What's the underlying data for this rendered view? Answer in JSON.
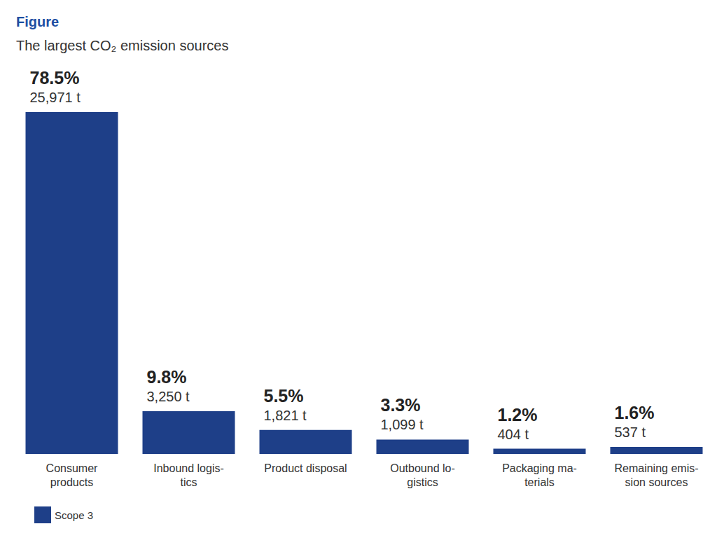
{
  "chart_data": {
    "type": "bar",
    "title": "Figure",
    "subtitle": "The largest CO₂ emission sources",
    "categories": [
      "Consumer\nproducts",
      "Inbound logis-\ntics",
      "Product disposal",
      "Outbound lo-\ngistics",
      "Packaging ma-\nterials",
      "Remaining emis-\nsion sources"
    ],
    "series": [
      {
        "name": "Scope 3",
        "color": "#1e3f88",
        "values": [
          78.5,
          9.8,
          5.5,
          3.3,
          1.2,
          1.6
        ],
        "value_labels": [
          "78.5%",
          "9.8%",
          "5.5%",
          "3.3%",
          "1.2%",
          "1.6%"
        ],
        "tonnes": [
          25971,
          3250,
          1821,
          1099,
          404,
          537
        ],
        "tonne_labels": [
          "25,971 t",
          "3,250 t",
          "1,821 t",
          "1,099 t",
          "404 t",
          "537 t"
        ]
      }
    ],
    "ylim": [
      0,
      78.5
    ],
    "grid": false,
    "legend": "lower left",
    "data_labels": true,
    "tick_labels": "x"
  }
}
